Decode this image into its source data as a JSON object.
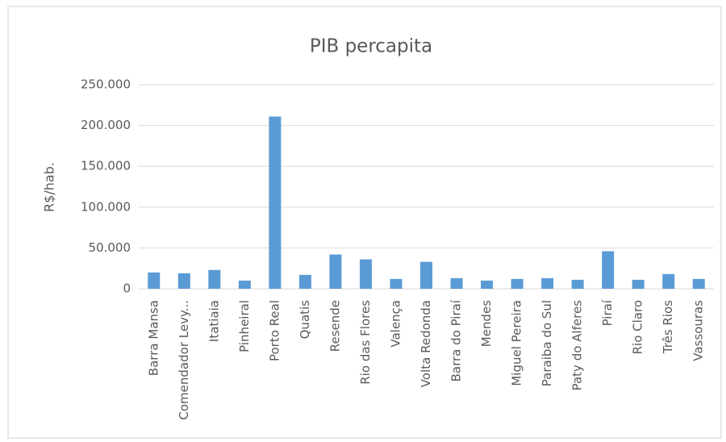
{
  "chart_data": {
    "type": "bar",
    "title": "PIB percapita",
    "y_label": "R$/hab.",
    "categories": [
      "Barra Mansa",
      "Comendador Levy...",
      "Itatiaia",
      "Pinheiral",
      "Porto Real",
      "Quatis",
      "Resende",
      "Rio das Flores",
      "Valença",
      "Volta Redonda",
      "Barra do Piraí",
      "Mendes",
      "Miguel Pereira",
      "Paraiba do Sul",
      "Paty do Alferes",
      "Piraí",
      "Rio Claro",
      "Três Rios",
      "Vassouras"
    ],
    "values": [
      20000,
      19000,
      23000,
      10000,
      211000,
      17000,
      42000,
      36000,
      12000,
      33000,
      13000,
      10000,
      12000,
      13000,
      11000,
      46000,
      11000,
      18000,
      12000
    ],
    "color": "#5b9bd5",
    "ylim": [
      0,
      250000
    ],
    "yticks": [
      0,
      {
        "value": 50000,
        "label": "50.000"
      },
      {
        "value": 100000,
        "label": "100.000"
      },
      {
        "value": 150000,
        "label": "150.000"
      },
      {
        "value": 200000,
        "label": "200.000"
      },
      {
        "value": 250000,
        "label": "250.000"
      }
    ],
    "grid": true
  }
}
